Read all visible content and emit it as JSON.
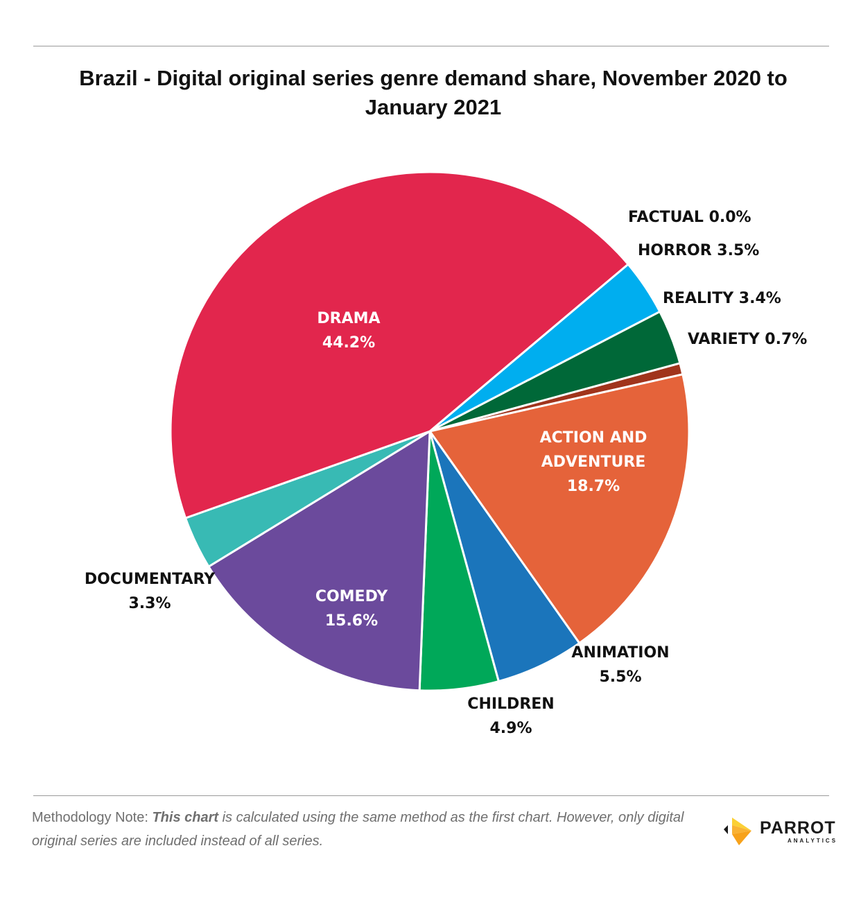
{
  "title": "Brazil - Digital original series genre demand share, November 2020 to January 2021",
  "chart_data": {
    "type": "pie",
    "title": "Brazil - Digital original series genre demand share, November 2020 to January 2021",
    "unit": "%",
    "slices": [
      {
        "name": "FACTUAL",
        "label": "FACTUAL 0.0%",
        "value": 0.0,
        "color": "#ffffff",
        "label_position": "outside"
      },
      {
        "name": "HORROR",
        "label": "HORROR 3.5%",
        "value": 3.5,
        "color": "#00aeef",
        "label_position": "outside"
      },
      {
        "name": "REALITY",
        "label": "REALITY 3.4%",
        "value": 3.4,
        "color": "#006838",
        "label_position": "outside"
      },
      {
        "name": "VARIETY",
        "label": "VARIETY 0.7%",
        "value": 0.7,
        "color": "#a0341c",
        "label_position": "outside"
      },
      {
        "name": "ACTION AND ADVENTURE",
        "label_lines": [
          "ACTION AND",
          "ADVENTURE",
          "18.7%"
        ],
        "value": 18.7,
        "color": "#e5633a",
        "label_position": "inside"
      },
      {
        "name": "ANIMATION",
        "label_lines": [
          "ANIMATION",
          "5.5%"
        ],
        "value": 5.5,
        "color": "#1b75bb",
        "label_position": "outside"
      },
      {
        "name": "CHILDREN",
        "label_lines": [
          "CHILDREN",
          "4.9%"
        ],
        "value": 4.9,
        "color": "#00a859",
        "label_position": "outside"
      },
      {
        "name": "COMEDY",
        "label_lines": [
          "COMEDY",
          "15.6%"
        ],
        "value": 15.6,
        "color": "#6b4a9c",
        "label_position": "inside"
      },
      {
        "name": "DOCUMENTARY",
        "label_lines": [
          "DOCUMENTARY",
          "3.3%"
        ],
        "value": 3.3,
        "color": "#38bab4",
        "label_position": "outside"
      },
      {
        "name": "DRAMA",
        "label_lines": [
          "DRAMA",
          "44.2%"
        ],
        "value": 44.2,
        "color": "#e2264d",
        "label_position": "inside"
      }
    ]
  },
  "note": {
    "lead": "Methodology Note:",
    "emphasis": "This chart",
    "rest": "is calculated using the same method as the first chart. However, only digital original series are included instead of all series."
  },
  "logo": {
    "word": "PARROT",
    "sub": "ANALYTICS",
    "colors": [
      "#f9b233",
      "#f7a21b",
      "#fbd036"
    ]
  }
}
